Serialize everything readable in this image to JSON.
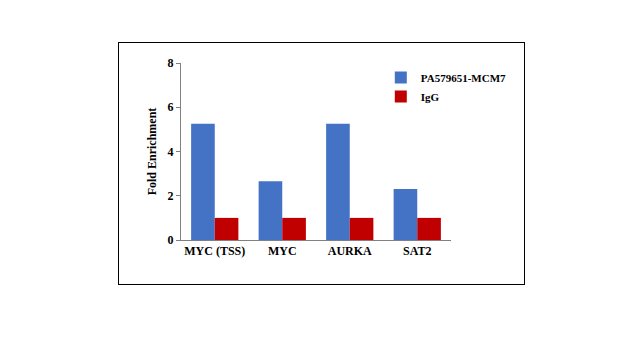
{
  "chart_data": {
    "type": "bar",
    "y_label": "Fold Enrichment",
    "categories": [
      "MYC (TSS)",
      "MYC",
      "AURKA",
      "SAT2"
    ],
    "series": [
      {
        "name": "PA579651-MCM7",
        "color": "#4472c4",
        "values": [
          5.25,
          2.65,
          5.25,
          2.3
        ]
      },
      {
        "name": "IgG",
        "color": "#c00000",
        "values": [
          1,
          1,
          1,
          1
        ]
      }
    ],
    "ylim": [
      0,
      8
    ],
    "yticks": [
      0,
      2,
      4,
      6,
      8
    ],
    "grid": false,
    "legend": "upper right"
  }
}
